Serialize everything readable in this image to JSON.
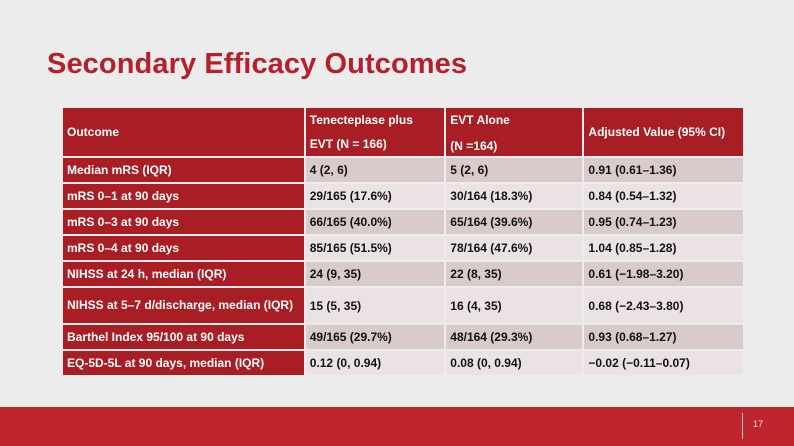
{
  "slide": {
    "title": "Secondary Efficacy Outcomes",
    "page_number": "17",
    "accent_color": "#b5202a",
    "header_color": "#a91d24"
  },
  "table": {
    "headers": [
      {
        "line1": "Outcome",
        "line2": ""
      },
      {
        "line1": "Tenecteplase plus",
        "line2": "EVT (N = 166)"
      },
      {
        "line1": "EVT Alone",
        "line2": "(N =164)"
      },
      {
        "line1": "Adjusted Value (95% CI)",
        "line2": ""
      }
    ],
    "rows": [
      {
        "outcome": "Median mRS (IQR)",
        "tnk": "4 (2, 6)",
        "evt": "5 (2, 6)",
        "adjusted": "0.91 (0.61–1.36)"
      },
      {
        "outcome": "mRS 0–1 at 90 days",
        "tnk": "29/165 (17.6%)",
        "evt": "30/164 (18.3%)",
        "adjusted": "0.84 (0.54–1.32)"
      },
      {
        "outcome": "mRS 0–3 at 90 days",
        "tnk": "66/165 (40.0%)",
        "evt": "65/164 (39.6%)",
        "adjusted": "0.95 (0.74–1.23)"
      },
      {
        "outcome": "mRS 0–4 at 90 days",
        "tnk": "85/165 (51.5%)",
        "evt": "78/164 (47.6%)",
        "adjusted": "1.04 (0.85–1.28)"
      },
      {
        "outcome": "NIHSS at 24 h, median (IQR)",
        "tnk": "24 (9, 35)",
        "evt": "22 (8, 35)",
        "adjusted": "0.61 (−1.98–3.20)"
      },
      {
        "outcome": "NIHSS at 5–7 d/discharge, median (IQR)",
        "tnk": "15 (5, 35)",
        "evt": "16 (4, 35)",
        "adjusted": "0.68 (−2.43–3.80)"
      },
      {
        "outcome": "Barthel Index 95/100 at 90 days",
        "tnk": "49/165 (29.7%)",
        "evt": "48/164 (29.3%)",
        "adjusted": "0.93 (0.68–1.27)"
      },
      {
        "outcome": "EQ-5D-5L at 90 days, median (IQR)",
        "tnk": "0.12 (0, 0.94)",
        "evt": "0.08 (0, 0.94)",
        "adjusted": "−0.02 (−0.11–0.07)"
      }
    ]
  }
}
